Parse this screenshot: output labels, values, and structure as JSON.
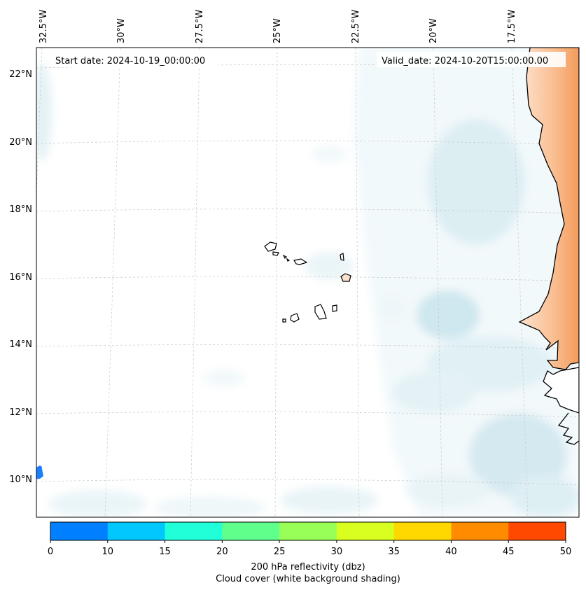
{
  "map": {
    "start_date": "Start date: 2024-10-19_00:00:00",
    "valid_date": "Valid_date: 2024-10-20T15:00:00.00",
    "lon_labels": [
      "32.5°W",
      "30°W",
      "27.5°W",
      "25°W",
      "22.5°W",
      "20°W",
      "17.5°W"
    ],
    "lat_labels": [
      "22°N",
      "20°N",
      "18°N",
      "16°N",
      "14°N",
      "12°N",
      "10°N"
    ],
    "land_color": "#f6a56a",
    "cloud_color": "#cfe7ef"
  },
  "colorbar": {
    "ticks": [
      "0",
      "10",
      "15",
      "20",
      "25",
      "30",
      "35",
      "40",
      "45",
      "50"
    ],
    "colors": [
      "#0080ff",
      "#00c8ff",
      "#20ffd8",
      "#60ff8c",
      "#98ff58",
      "#d8ff20",
      "#ffd800",
      "#ff8c00",
      "#ff4800"
    ],
    "label_line1": "200 hPa reflectivity (dbz)",
    "label_line2": "Cloud cover (white background shading)"
  }
}
